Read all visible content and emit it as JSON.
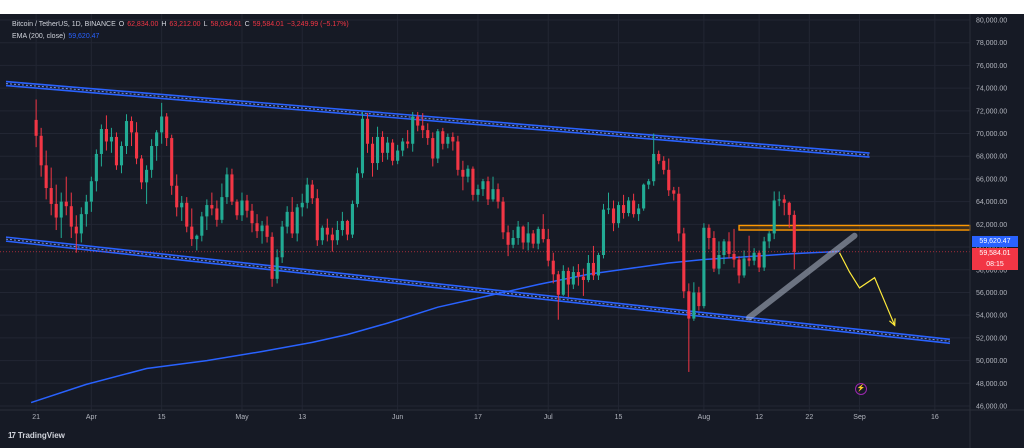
{
  "legend": {
    "symbol": "Bitcoin / TetherUS, 1D, BINANCE",
    "open_label": "O",
    "open": "62,834.00",
    "high_label": "H",
    "high": "63,212.00",
    "low_label": "L",
    "low": "58,034.01",
    "close_label": "C",
    "close": "59,584.01",
    "change": "−3,249.99 (−5.17%)",
    "ema_label": "EMA (200, close)",
    "ema_value": "59,620.47"
  },
  "price_tags": {
    "ema": "59,620.47",
    "price": "59,584.01",
    "countdown": "08:15"
  },
  "brand": {
    "logo": "17",
    "name": "TradingView"
  },
  "colors": {
    "background": "#161a25",
    "up": "#22ab94",
    "down": "#f23645",
    "ema": "#2962ff",
    "channel": "#2962ff",
    "support": "#ff9800",
    "projection": "#ffeb3b"
  },
  "icons": {
    "settings": "lightning-circle-icon"
  },
  "chart_data": {
    "type": "candlestick",
    "title": "Bitcoin / TetherUS, 1D, BINANCE",
    "y_scale": "linear",
    "ylim": [
      46000,
      80000
    ],
    "y_ticks": [
      "80,000.00",
      "78,000.00",
      "76,000.00",
      "74,000.00",
      "72,000.00",
      "70,000.00",
      "68,000.00",
      "66,000.00",
      "64,000.00",
      "62,000.00",
      "60,000.00",
      "58,000.00",
      "56,000.00",
      "54,000.00",
      "52,000.00",
      "50,000.00",
      "48,000.00",
      "46,000.00"
    ],
    "x_ticks": [
      "21",
      "Apr",
      "15",
      "May",
      "13",
      "Jun",
      "17",
      "Jul",
      "15",
      "Aug",
      "12",
      "22",
      "Sep",
      "16"
    ],
    "x_tick_days": [
      0,
      11,
      25,
      41,
      53,
      72,
      88,
      102,
      116,
      133,
      144,
      154,
      164,
      179
    ],
    "x_range_days": [
      -6,
      186
    ],
    "candles": [
      [
        71200,
        73000,
        68800,
        69800
      ],
      [
        69800,
        70500,
        66200,
        67200
      ],
      [
        67200,
        68500,
        64200,
        65200
      ],
      [
        65200,
        67000,
        62800,
        63800
      ],
      [
        63800,
        65500,
        61500,
        62600
      ],
      [
        62600,
        64800,
        60800,
        64000
      ],
      [
        64000,
        66200,
        62800,
        63600
      ],
      [
        63600,
        64800,
        60800,
        61800
      ],
      [
        61800,
        62800,
        59500,
        61200
      ],
      [
        61200,
        63500,
        60400,
        62900
      ],
      [
        62900,
        64600,
        61800,
        64000
      ],
      [
        64000,
        66200,
        63100,
        65800
      ],
      [
        65800,
        68600,
        64900,
        68200
      ],
      [
        68200,
        70800,
        67100,
        70400
      ],
      [
        70400,
        71600,
        68500,
        69300
      ],
      [
        69300,
        70500,
        68300,
        69700
      ],
      [
        69700,
        70100,
        66800,
        67200
      ],
      [
        67200,
        69300,
        66500,
        68900
      ],
      [
        68900,
        71700,
        68200,
        71100
      ],
      [
        71100,
        71500,
        68900,
        70100
      ],
      [
        70100,
        71000,
        67300,
        67800
      ],
      [
        67800,
        68100,
        65100,
        65700
      ],
      [
        65700,
        67200,
        63800,
        66800
      ],
      [
        66800,
        69500,
        66100,
        68900
      ],
      [
        68900,
        70300,
        67600,
        70100
      ],
      [
        70100,
        72700,
        69100,
        71500
      ],
      [
        71500,
        71800,
        68900,
        69600
      ],
      [
        69600,
        69900,
        64600,
        65400
      ],
      [
        65400,
        66400,
        62700,
        63500
      ],
      [
        63500,
        64500,
        62300,
        63900
      ],
      [
        63900,
        64400,
        61300,
        61800
      ],
      [
        61800,
        63400,
        60100,
        60700
      ],
      [
        60700,
        61100,
        59700,
        61000
      ],
      [
        61000,
        63100,
        60500,
        62700
      ],
      [
        62700,
        64200,
        61500,
        63700
      ],
      [
        63700,
        64800,
        62800,
        63400
      ],
      [
        63400,
        64100,
        61800,
        62400
      ],
      [
        62400,
        65600,
        62100,
        64400
      ],
      [
        64400,
        67000,
        63800,
        66400
      ],
      [
        66400,
        66900,
        63700,
        64000
      ],
      [
        64000,
        64200,
        62400,
        62800
      ],
      [
        62800,
        64800,
        62300,
        64100
      ],
      [
        64100,
        64600,
        62600,
        63200
      ],
      [
        63200,
        63800,
        61300,
        62100
      ],
      [
        62100,
        62900,
        60800,
        61400
      ],
      [
        61400,
        62300,
        60300,
        61900
      ],
      [
        61900,
        62700,
        60400,
        60900
      ],
      [
        60900,
        61300,
        56500,
        57200
      ],
      [
        57200,
        59800,
        56800,
        59100
      ],
      [
        59100,
        62300,
        58600,
        61800
      ],
      [
        61800,
        63600,
        61200,
        63100
      ],
      [
        63100,
        64400,
        60800,
        61200
      ],
      [
        61200,
        63800,
        60500,
        63500
      ],
      [
        63500,
        64700,
        62700,
        63900
      ],
      [
        63900,
        66100,
        63400,
        65500
      ],
      [
        65500,
        65900,
        63800,
        64300
      ],
      [
        64300,
        65100,
        60100,
        60600
      ],
      [
        60600,
        61900,
        60200,
        61700
      ],
      [
        61700,
        62500,
        60500,
        61100
      ],
      [
        61100,
        61700,
        59600,
        60600
      ],
      [
        60600,
        62300,
        60200,
        61500
      ],
      [
        61500,
        63100,
        61000,
        62300
      ],
      [
        62300,
        62400,
        60600,
        61100
      ],
      [
        61100,
        64100,
        60800,
        63800
      ],
      [
        63800,
        67000,
        63500,
        66500
      ],
      [
        66500,
        71900,
        66100,
        71300
      ],
      [
        71300,
        71800,
        68300,
        69100
      ],
      [
        69100,
        69700,
        66200,
        67400
      ],
      [
        67400,
        70600,
        66800,
        69700
      ],
      [
        69700,
        70200,
        67500,
        68300
      ],
      [
        68300,
        69700,
        67700,
        69200
      ],
      [
        69200,
        69500,
        67200,
        67600
      ],
      [
        67600,
        69000,
        67300,
        68500
      ],
      [
        68500,
        69600,
        68000,
        69300
      ],
      [
        69300,
        70300,
        68700,
        69100
      ],
      [
        69100,
        71900,
        68400,
        71500
      ],
      [
        71500,
        71900,
        70200,
        70700
      ],
      [
        70700,
        71800,
        69600,
        70300
      ],
      [
        70300,
        70900,
        69000,
        69600
      ],
      [
        69600,
        70100,
        67100,
        67800
      ],
      [
        67800,
        70400,
        67400,
        70200
      ],
      [
        70200,
        70500,
        68600,
        69100
      ],
      [
        69100,
        70000,
        68700,
        69700
      ],
      [
        69700,
        70100,
        68500,
        69300
      ],
      [
        69300,
        69800,
        66300,
        66800
      ],
      [
        66800,
        67600,
        65000,
        66200
      ],
      [
        66200,
        67200,
        65700,
        66900
      ],
      [
        66900,
        67100,
        64100,
        64600
      ],
      [
        64600,
        65500,
        64000,
        65100
      ],
      [
        65100,
        66000,
        64500,
        65800
      ],
      [
        65800,
        66200,
        63700,
        64200
      ],
      [
        64200,
        66200,
        64000,
        65100
      ],
      [
        65100,
        65600,
        63400,
        64000
      ],
      [
        64000,
        64400,
        60700,
        61300
      ],
      [
        61300,
        61900,
        59200,
        60200
      ],
      [
        60200,
        61500,
        59900,
        60800
      ],
      [
        60800,
        62300,
        60200,
        61800
      ],
      [
        61800,
        61900,
        59800,
        60400
      ],
      [
        60400,
        62200,
        59700,
        61200
      ],
      [
        61200,
        61500,
        59900,
        60300
      ],
      [
        60300,
        61800,
        59800,
        61600
      ],
      [
        61600,
        62900,
        60400,
        60700
      ],
      [
        60700,
        61600,
        58300,
        58800
      ],
      [
        58800,
        59500,
        56800,
        57600
      ],
      [
        57600,
        57900,
        53600,
        55800
      ],
      [
        55800,
        58400,
        55700,
        57900
      ],
      [
        57900,
        58200,
        55600,
        56700
      ],
      [
        56700,
        58300,
        56300,
        57800
      ],
      [
        57800,
        58500,
        56600,
        57400
      ],
      [
        57400,
        58100,
        55700,
        57100
      ],
      [
        57100,
        59300,
        56900,
        58600
      ],
      [
        58600,
        60100,
        57100,
        57500
      ],
      [
        57500,
        59500,
        57100,
        59300
      ],
      [
        59300,
        63800,
        59000,
        63300
      ],
      [
        63300,
        64800,
        62900,
        63400
      ],
      [
        63400,
        64100,
        61400,
        62100
      ],
      [
        62100,
        64000,
        61700,
        63700
      ],
      [
        63700,
        64600,
        62500,
        63000
      ],
      [
        63000,
        64400,
        62700,
        64100
      ],
      [
        64100,
        64700,
        62600,
        62900
      ],
      [
        62900,
        63800,
        62300,
        63400
      ],
      [
        63400,
        65600,
        63200,
        65500
      ],
      [
        65500,
        66000,
        65100,
        65800
      ],
      [
        65800,
        70000,
        65400,
        68200
      ],
      [
        68200,
        68500,
        67300,
        67600
      ],
      [
        67600,
        68000,
        66400,
        66800
      ],
      [
        66800,
        67800,
        64500,
        65000
      ],
      [
        65000,
        65300,
        64100,
        64700
      ],
      [
        64700,
        65300,
        60500,
        61200
      ],
      [
        61200,
        61700,
        55500,
        56100
      ],
      [
        56100,
        56800,
        49000,
        53700
      ],
      [
        53700,
        56900,
        53500,
        56000
      ],
      [
        56000,
        56500,
        54400,
        54800
      ],
      [
        54800,
        62100,
        54600,
        61700
      ],
      [
        61700,
        62000,
        59800,
        60800
      ],
      [
        60800,
        61400,
        57800,
        58100
      ],
      [
        58100,
        60500,
        57600,
        59300
      ],
      [
        59300,
        60700,
        58500,
        60500
      ],
      [
        60500,
        61300,
        59000,
        59400
      ],
      [
        59400,
        61600,
        58200,
        58900
      ],
      [
        58900,
        59200,
        56800,
        57500
      ],
      [
        57500,
        59700,
        57300,
        59000
      ],
      [
        59000,
        61000,
        58300,
        58800
      ],
      [
        58800,
        59900,
        58400,
        59500
      ],
      [
        59500,
        59700,
        57800,
        58200
      ],
      [
        58200,
        60900,
        57900,
        60500
      ],
      [
        60500,
        61400,
        59900,
        61200
      ],
      [
        61200,
        64900,
        60700,
        64100
      ],
      [
        64100,
        64900,
        63600,
        64200
      ],
      [
        64200,
        64600,
        62800,
        63900
      ],
      [
        63900,
        64000,
        61700,
        62834
      ],
      [
        62834,
        63212,
        58034.01,
        59584.01
      ]
    ],
    "ema_series": {
      "name": "EMA (200, close)",
      "points": [
        [
          -1,
          46300
        ],
        [
          10,
          47900
        ],
        [
          22,
          49300
        ],
        [
          34,
          50000
        ],
        [
          45,
          50800
        ],
        [
          55,
          51600
        ],
        [
          62,
          52300
        ],
        [
          70,
          53300
        ],
        [
          80,
          54700
        ],
        [
          90,
          55700
        ],
        [
          100,
          56700
        ],
        [
          110,
          57600
        ],
        [
          118,
          58100
        ],
        [
          126,
          58600
        ],
        [
          133,
          58900
        ],
        [
          140,
          59100
        ],
        [
          150,
          59400
        ],
        [
          160,
          59620.47
        ]
      ]
    },
    "channel_upper": {
      "start": [
        -6,
        74400
      ],
      "end": [
        166,
        68100
      ]
    },
    "channel_lower": {
      "start": [
        -6,
        60700
      ],
      "end": [
        182,
        51700
      ]
    },
    "support_zone": {
      "x_start": 140,
      "x_end": 186,
      "low": 61500,
      "high": 61900
    },
    "rising_support": {
      "start": [
        142,
        53800
      ],
      "end": [
        163,
        61000
      ]
    },
    "projection": {
      "points": [
        [
          160,
          59500
        ],
        [
          162,
          57800
        ],
        [
          164,
          56400
        ],
        [
          167,
          57300
        ],
        [
          171,
          53100
        ]
      ]
    }
  }
}
